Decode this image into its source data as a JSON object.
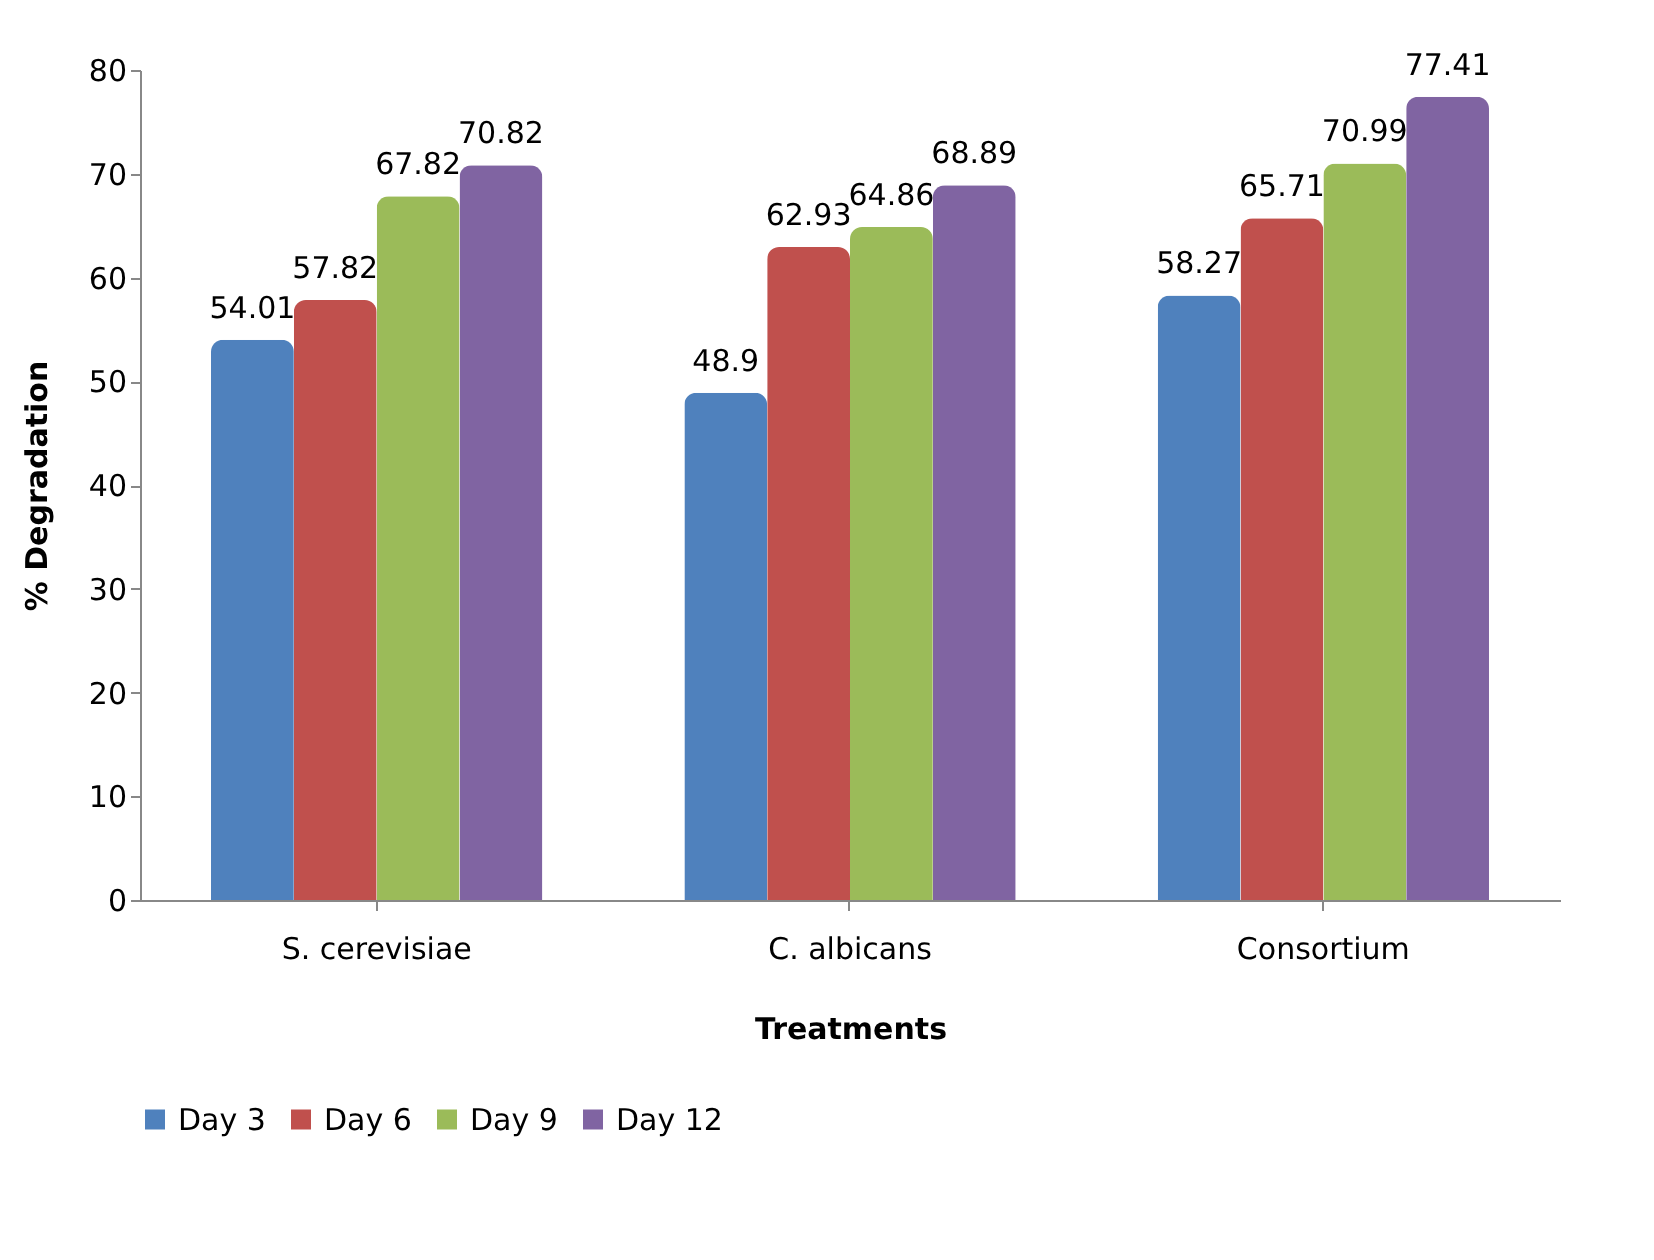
{
  "chart_data": {
    "type": "bar",
    "xlabel": "Treatments",
    "ylabel": "% Degradation",
    "categories": [
      "S. cerevisiae",
      "C. albicans",
      "Consortium"
    ],
    "series": [
      {
        "name": "Day 3",
        "color": "#4f81bd",
        "values": [
          54.01,
          48.9,
          58.27
        ]
      },
      {
        "name": "Day 6",
        "color": "#c0504d",
        "values": [
          57.82,
          62.93,
          65.71
        ]
      },
      {
        "name": "Day 9",
        "color": "#9bbb59",
        "values": [
          67.82,
          64.86,
          70.99
        ]
      },
      {
        "name": "Day 12",
        "color": "#8064a2",
        "values": [
          70.82,
          68.89,
          77.41
        ]
      }
    ],
    "ylim": [
      0,
      80
    ],
    "yticks": [
      0,
      10,
      20,
      30,
      40,
      50,
      60,
      70,
      80
    ],
    "grid": false,
    "legend": "bottom",
    "data_labels": true
  }
}
